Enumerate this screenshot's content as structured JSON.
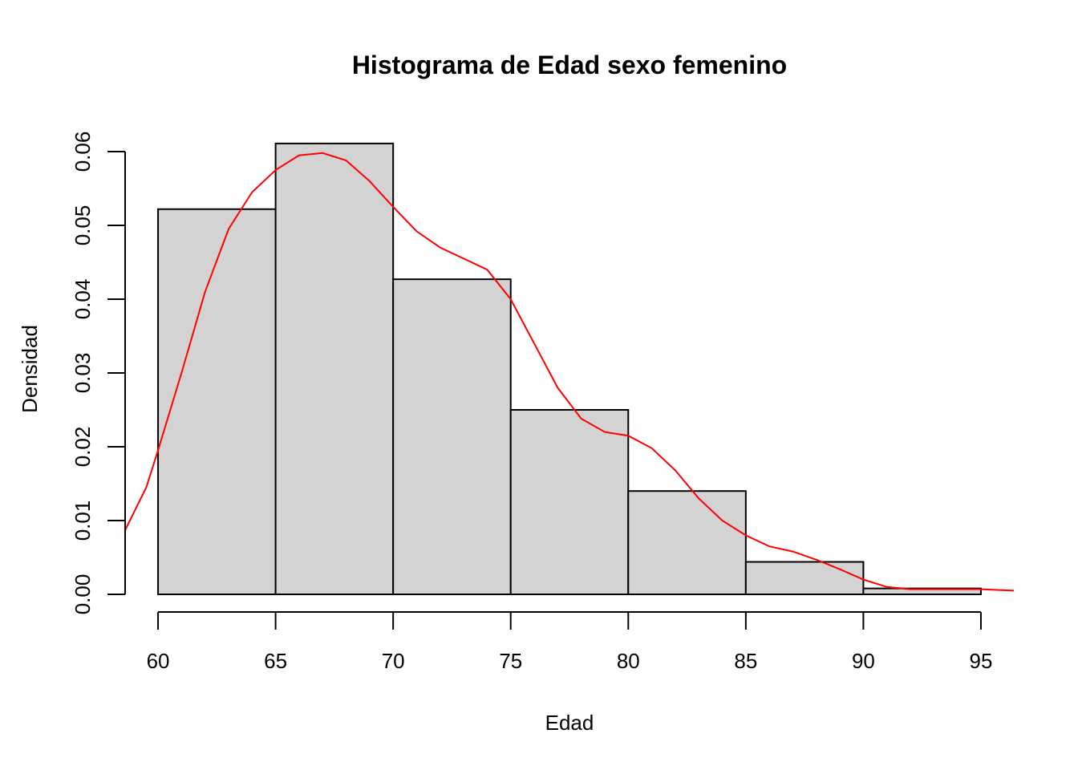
{
  "chart_data": {
    "type": "bar",
    "subtype": "histogram-with-density",
    "title": "Histograma de Edad sexo femenino",
    "xlabel": "Edad",
    "ylabel": "Densidad",
    "xlim": [
      58.6,
      96.4
    ],
    "ylim": [
      0,
      0.06
    ],
    "x_ticks": [
      "60",
      "65",
      "70",
      "75",
      "80",
      "85",
      "90",
      "95"
    ],
    "y_ticks": [
      "0.00",
      "0.01",
      "0.02",
      "0.03",
      "0.04",
      "0.05",
      "0.06"
    ],
    "bins": [
      {
        "from": 60,
        "to": 65,
        "density": 0.0522
      },
      {
        "from": 65,
        "to": 70,
        "density": 0.0611
      },
      {
        "from": 70,
        "to": 75,
        "density": 0.0427
      },
      {
        "from": 75,
        "to": 80,
        "density": 0.025
      },
      {
        "from": 80,
        "to": 85,
        "density": 0.014
      },
      {
        "from": 85,
        "to": 90,
        "density": 0.0044
      },
      {
        "from": 90,
        "to": 95,
        "density": 0.0008
      }
    ],
    "density_curve": {
      "x": [
        58.6,
        59.5,
        60,
        61,
        62,
        63,
        64,
        65,
        66,
        67,
        68,
        69,
        70,
        71,
        72,
        73,
        74,
        75,
        76,
        77,
        78,
        79,
        80,
        81,
        82,
        83,
        84,
        85,
        86,
        87,
        88,
        89,
        90,
        91,
        92,
        93,
        94,
        95,
        96.4
      ],
      "y": [
        0.0087,
        0.0145,
        0.0195,
        0.03,
        0.041,
        0.0495,
        0.0545,
        0.0575,
        0.0595,
        0.0598,
        0.0588,
        0.056,
        0.0525,
        0.0492,
        0.047,
        0.0455,
        0.044,
        0.04,
        0.034,
        0.028,
        0.0238,
        0.022,
        0.0215,
        0.0198,
        0.0168,
        0.013,
        0.01,
        0.008,
        0.0065,
        0.0058,
        0.0047,
        0.0034,
        0.002,
        0.001,
        0.0007,
        0.0007,
        0.0007,
        0.0007,
        0.0005
      ]
    },
    "bar_fill": "#d3d3d3",
    "density_color": "#ff0000",
    "grid": false,
    "legend": "none"
  }
}
